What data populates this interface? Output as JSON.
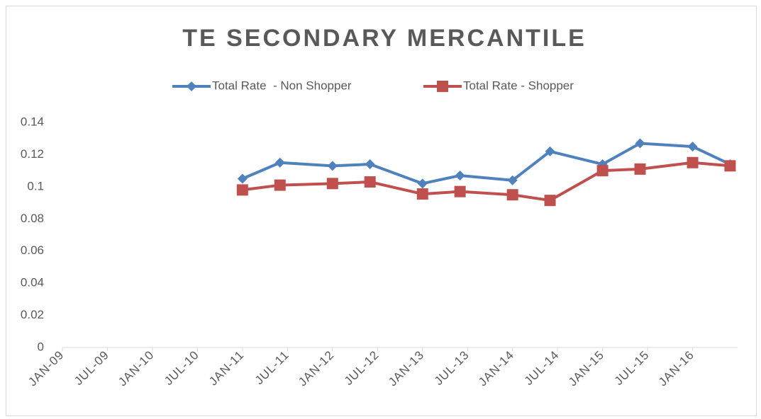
{
  "chart_data": {
    "type": "line",
    "title": "TE SECONDARY MERCANTILE",
    "x": [
      "2011-01",
      "2011-06",
      "2012-01",
      "2012-06",
      "2013-01",
      "2013-06",
      "2014-01",
      "2014-06",
      "2015-01",
      "2015-06",
      "2016-01",
      "2016-06"
    ],
    "series": [
      {
        "name": "Total Rate  - Non Shopper",
        "color": "#4f81bd",
        "marker": "diamond",
        "values": [
          0.105,
          0.115,
          0.113,
          0.114,
          0.102,
          0.107,
          0.104,
          0.122,
          0.114,
          0.127,
          0.125,
          0.114
        ]
      },
      {
        "name": "Total Rate - Shopper",
        "color": "#c0504d",
        "marker": "square",
        "values": [
          0.098,
          0.101,
          0.102,
          0.103,
          0.0955,
          0.097,
          0.095,
          0.0915,
          0.11,
          0.111,
          0.115,
          0.113
        ]
      }
    ],
    "xlim": [
      "2009-01",
      "2016-07"
    ],
    "xticks": [
      {
        "value": "2009-01",
        "label": "JAN-09"
      },
      {
        "value": "2009-07",
        "label": "JUL-09"
      },
      {
        "value": "2010-01",
        "label": "JAN-10"
      },
      {
        "value": "2010-07",
        "label": "JUL-10"
      },
      {
        "value": "2011-01",
        "label": "JAN-11"
      },
      {
        "value": "2011-07",
        "label": "JUL-11"
      },
      {
        "value": "2012-01",
        "label": "JAN-12"
      },
      {
        "value": "2012-07",
        "label": "JUL-12"
      },
      {
        "value": "2013-01",
        "label": "JAN-13"
      },
      {
        "value": "2013-07",
        "label": "JUL-13"
      },
      {
        "value": "2014-01",
        "label": "JAN-14"
      },
      {
        "value": "2014-07",
        "label": "JUL-14"
      },
      {
        "value": "2015-01",
        "label": "JAN-15"
      },
      {
        "value": "2015-07",
        "label": "JUL-15"
      },
      {
        "value": "2016-01",
        "label": "JAN-16"
      }
    ],
    "ylim": [
      0,
      0.14
    ],
    "yticks": [
      0,
      0.02,
      0.04,
      0.06,
      0.08,
      0.1,
      0.12,
      0.14
    ],
    "grid": false,
    "legend": "top"
  }
}
